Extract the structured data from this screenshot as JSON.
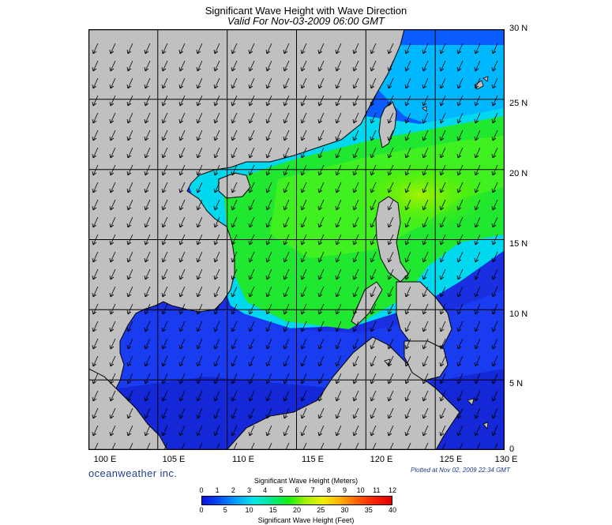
{
  "header": {
    "title": "Significant Wave Height with Wave Direction",
    "subtitle": "Valid For Nov-03-2009 06:00 GMT"
  },
  "map": {
    "lat_labels": [
      "30 N",
      "25 N",
      "20 N",
      "15 N",
      "10 N",
      "5 N",
      "0"
    ],
    "lon_labels": [
      "100 E",
      "105 E",
      "110 E",
      "115 E",
      "120 E",
      "125 E",
      "130 E"
    ],
    "lon_range": [
      100,
      130
    ],
    "lat_range": [
      0,
      30
    ],
    "prevailing_wave_direction": "northeast (arrows pointing toward southwest)",
    "colors": {
      "land": "#c0c0c0",
      "coastline": "#000000",
      "grid": "#000000"
    }
  },
  "footer": {
    "credit": "oceanweather inc.",
    "plotted": "Plotted at Nov 02, 2009 22:34 GMT"
  },
  "legend": {
    "meters_title": "Significant Wave Height (Meters)",
    "feet_title": "Significant Wave Height (Feet)",
    "meters_ticks": [
      "0",
      "1",
      "2",
      "3",
      "4",
      "5",
      "6",
      "7",
      "8",
      "9",
      "10",
      "11",
      "12"
    ],
    "feet_ticks": [
      "0",
      "5",
      "10",
      "15",
      "20",
      "25",
      "30",
      "35",
      "40"
    ],
    "colors": [
      "#1010e0",
      "#0050ff",
      "#00a0ff",
      "#00e8e8",
      "#00e890",
      "#10f010",
      "#a0f000",
      "#f0f000",
      "#ffb000",
      "#ff6000",
      "#ff2000",
      "#e00000"
    ]
  }
}
